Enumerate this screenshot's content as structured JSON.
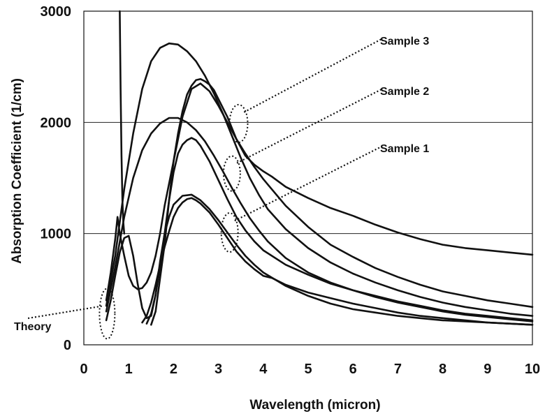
{
  "chart_data": {
    "type": "line",
    "title": "",
    "xlabel": "Wavelength (micron)",
    "ylabel": "Absorption Coefficient (1/cm)",
    "xlim": [
      0,
      10
    ],
    "ylim": [
      0,
      3000
    ],
    "x_ticks": [
      0,
      1,
      2,
      3,
      4,
      5,
      6,
      7,
      8,
      9,
      10
    ],
    "y_ticks": [
      0,
      1000,
      2000,
      3000
    ],
    "grid": "horizontal",
    "legend": "none",
    "series": [
      {
        "name": "Sample 3",
        "points": [
          [
            1.5,
            180
          ],
          [
            1.6,
            300
          ],
          [
            1.7,
            600
          ],
          [
            1.8,
            900
          ],
          [
            1.9,
            1300
          ],
          [
            2.0,
            1650
          ],
          [
            2.1,
            1900
          ],
          [
            2.2,
            2100
          ],
          [
            2.3,
            2250
          ],
          [
            2.4,
            2330
          ],
          [
            2.5,
            2380
          ],
          [
            2.6,
            2390
          ],
          [
            2.7,
            2370
          ],
          [
            2.8,
            2340
          ],
          [
            2.9,
            2290
          ],
          [
            3.0,
            2210
          ],
          [
            3.2,
            2050
          ],
          [
            3.4,
            1850
          ],
          [
            3.6,
            1700
          ],
          [
            3.8,
            1620
          ],
          [
            4.0,
            1560
          ],
          [
            4.2,
            1510
          ],
          [
            4.5,
            1420
          ],
          [
            5.0,
            1320
          ],
          [
            5.5,
            1230
          ],
          [
            6.0,
            1160
          ],
          [
            6.5,
            1080
          ],
          [
            7.0,
            1010
          ],
          [
            7.5,
            950
          ],
          [
            8.0,
            900
          ],
          [
            8.5,
            870
          ],
          [
            9.0,
            850
          ],
          [
            9.5,
            830
          ],
          [
            10.0,
            810
          ]
        ]
      },
      {
        "name": "Sample 2",
        "points": [
          [
            1.4,
            190
          ],
          [
            1.5,
            280
          ],
          [
            1.6,
            450
          ],
          [
            1.7,
            700
          ],
          [
            1.8,
            1000
          ],
          [
            1.9,
            1300
          ],
          [
            2.0,
            1550
          ],
          [
            2.1,
            1720
          ],
          [
            2.2,
            1800
          ],
          [
            2.3,
            1840
          ],
          [
            2.4,
            1860
          ],
          [
            2.5,
            1840
          ],
          [
            2.6,
            1790
          ],
          [
            2.8,
            1650
          ],
          [
            3.0,
            1480
          ],
          [
            3.2,
            1310
          ],
          [
            3.4,
            1150
          ],
          [
            3.6,
            1030
          ],
          [
            3.8,
            930
          ],
          [
            4.0,
            850
          ],
          [
            4.5,
            720
          ],
          [
            5.0,
            630
          ],
          [
            5.5,
            550
          ],
          [
            6.0,
            490
          ],
          [
            6.5,
            440
          ],
          [
            7.0,
            390
          ],
          [
            7.5,
            350
          ],
          [
            8.0,
            310
          ],
          [
            8.5,
            280
          ],
          [
            9.0,
            260
          ],
          [
            9.5,
            240
          ],
          [
            10.0,
            220
          ]
        ]
      },
      {
        "name": "Sample 1",
        "points": [
          [
            1.3,
            200
          ],
          [
            1.4,
            260
          ],
          [
            1.5,
            380
          ],
          [
            1.6,
            540
          ],
          [
            1.7,
            720
          ],
          [
            1.8,
            880
          ],
          [
            1.9,
            1020
          ],
          [
            2.0,
            1150
          ],
          [
            2.1,
            1230
          ],
          [
            2.2,
            1280
          ],
          [
            2.3,
            1310
          ],
          [
            2.4,
            1320
          ],
          [
            2.5,
            1300
          ],
          [
            2.6,
            1270
          ],
          [
            2.8,
            1190
          ],
          [
            3.0,
            1080
          ],
          [
            3.2,
            960
          ],
          [
            3.4,
            840
          ],
          [
            3.6,
            750
          ],
          [
            3.8,
            680
          ],
          [
            4.0,
            620
          ],
          [
            4.2,
            600
          ],
          [
            4.5,
            540
          ],
          [
            5.0,
            470
          ],
          [
            5.5,
            420
          ],
          [
            6.0,
            370
          ],
          [
            6.5,
            330
          ],
          [
            7.0,
            290
          ],
          [
            7.5,
            260
          ],
          [
            8.0,
            240
          ],
          [
            8.5,
            220
          ],
          [
            9.0,
            200
          ],
          [
            9.5,
            190
          ],
          [
            10.0,
            180
          ]
        ]
      },
      {
        "points": [
          [
            0.5,
            400
          ],
          [
            0.6,
            650
          ],
          [
            0.7,
            950
          ],
          [
            0.75,
            1150
          ],
          [
            0.8,
            1000
          ],
          [
            0.9,
            800
          ],
          [
            1.0,
            620
          ],
          [
            1.1,
            530
          ],
          [
            1.2,
            500
          ],
          [
            1.3,
            510
          ],
          [
            1.4,
            560
          ],
          [
            1.5,
            650
          ],
          [
            1.6,
            800
          ],
          [
            1.7,
            1000
          ],
          [
            1.8,
            1250
          ],
          [
            2.0,
            1650
          ],
          [
            2.2,
            2050
          ],
          [
            2.4,
            2300
          ],
          [
            2.6,
            2350
          ],
          [
            2.8,
            2280
          ],
          [
            3.0,
            2150
          ],
          [
            3.2,
            2000
          ],
          [
            3.4,
            1850
          ],
          [
            3.6,
            1720
          ],
          [
            3.8,
            1600
          ],
          [
            4.0,
            1490
          ],
          [
            4.5,
            1250
          ],
          [
            5.0,
            1060
          ],
          [
            5.5,
            900
          ],
          [
            6.0,
            790
          ],
          [
            6.5,
            690
          ],
          [
            7.0,
            610
          ],
          [
            7.5,
            540
          ],
          [
            8.0,
            480
          ],
          [
            8.5,
            440
          ],
          [
            9.0,
            400
          ],
          [
            9.5,
            370
          ],
          [
            10.0,
            340
          ]
        ]
      },
      {
        "points": [
          [
            0.5,
            350
          ],
          [
            0.7,
            800
          ],
          [
            0.9,
            1400
          ],
          [
            1.1,
            1900
          ],
          [
            1.3,
            2300
          ],
          [
            1.5,
            2550
          ],
          [
            1.7,
            2670
          ],
          [
            1.9,
            2710
          ],
          [
            2.1,
            2700
          ],
          [
            2.3,
            2640
          ],
          [
            2.5,
            2550
          ],
          [
            2.7,
            2420
          ],
          [
            2.9,
            2260
          ],
          [
            3.1,
            2080
          ],
          [
            3.3,
            1880
          ],
          [
            3.5,
            1680
          ],
          [
            3.7,
            1500
          ],
          [
            3.9,
            1350
          ],
          [
            4.1,
            1220
          ],
          [
            4.5,
            1040
          ],
          [
            5.0,
            870
          ],
          [
            5.5,
            740
          ],
          [
            6.0,
            640
          ],
          [
            6.5,
            560
          ],
          [
            7.0,
            490
          ],
          [
            7.5,
            430
          ],
          [
            8.0,
            380
          ],
          [
            8.5,
            340
          ],
          [
            9.0,
            310
          ],
          [
            9.5,
            280
          ],
          [
            10.0,
            260
          ]
        ]
      },
      {
        "points": [
          [
            0.5,
            300
          ],
          [
            0.7,
            700
          ],
          [
            0.9,
            1150
          ],
          [
            1.1,
            1500
          ],
          [
            1.3,
            1750
          ],
          [
            1.5,
            1900
          ],
          [
            1.7,
            1990
          ],
          [
            1.9,
            2040
          ],
          [
            2.1,
            2040
          ],
          [
            2.3,
            2000
          ],
          [
            2.5,
            1930
          ],
          [
            2.7,
            1830
          ],
          [
            2.9,
            1700
          ],
          [
            3.1,
            1560
          ],
          [
            3.3,
            1410
          ],
          [
            3.5,
            1270
          ],
          [
            3.7,
            1140
          ],
          [
            3.9,
            1030
          ],
          [
            4.1,
            930
          ],
          [
            4.5,
            780
          ],
          [
            5.0,
            650
          ],
          [
            5.5,
            560
          ],
          [
            6.0,
            490
          ],
          [
            6.5,
            430
          ],
          [
            7.0,
            380
          ],
          [
            7.5,
            340
          ],
          [
            8.0,
            300
          ],
          [
            8.5,
            270
          ],
          [
            9.0,
            250
          ],
          [
            9.5,
            230
          ],
          [
            10.0,
            210
          ]
        ]
      },
      {
        "points": [
          [
            0.5,
            220
          ],
          [
            0.6,
            400
          ],
          [
            0.7,
            620
          ],
          [
            0.8,
            830
          ],
          [
            0.9,
            960
          ],
          [
            1.0,
            980
          ],
          [
            1.1,
            800
          ],
          [
            1.2,
            550
          ],
          [
            1.3,
            330
          ],
          [
            1.4,
            240
          ],
          [
            1.5,
            260
          ],
          [
            1.6,
            450
          ],
          [
            1.7,
            750
          ],
          [
            1.8,
            1000
          ],
          [
            1.9,
            1150
          ],
          [
            2.0,
            1260
          ],
          [
            2.2,
            1340
          ],
          [
            2.4,
            1350
          ],
          [
            2.6,
            1300
          ],
          [
            2.8,
            1220
          ],
          [
            3.0,
            1120
          ],
          [
            3.2,
            1010
          ],
          [
            3.4,
            900
          ],
          [
            3.6,
            800
          ],
          [
            3.8,
            720
          ],
          [
            4.0,
            650
          ],
          [
            4.5,
            530
          ],
          [
            5.0,
            440
          ],
          [
            5.5,
            370
          ],
          [
            6.0,
            320
          ],
          [
            6.5,
            290
          ],
          [
            7.0,
            260
          ],
          [
            7.5,
            240
          ],
          [
            8.0,
            220
          ],
          [
            8.5,
            210
          ],
          [
            9.0,
            200
          ],
          [
            9.5,
            190
          ],
          [
            10.0,
            180
          ]
        ]
      },
      {
        "points": [
          [
            0.8,
            3000
          ],
          [
            0.82,
            2300
          ],
          [
            0.84,
            1700
          ],
          [
            0.86,
            1300
          ],
          [
            0.88,
            1100
          ],
          [
            0.9,
            1000
          ]
        ]
      }
    ],
    "annotations": [
      {
        "label": "Sample 3",
        "marks_series": "Sample 3",
        "oval_at": [
          3.45,
          1990
        ]
      },
      {
        "label": "Sample 2",
        "marks_series": "Sample 2",
        "oval_at": [
          3.3,
          1540
        ]
      },
      {
        "label": "Sample 1",
        "marks_series": "Sample 1",
        "oval_at": [
          3.25,
          1010
        ]
      },
      {
        "label": "Theory",
        "marks_series": "Theory",
        "oval_at": [
          0.52,
          280
        ]
      }
    ]
  }
}
